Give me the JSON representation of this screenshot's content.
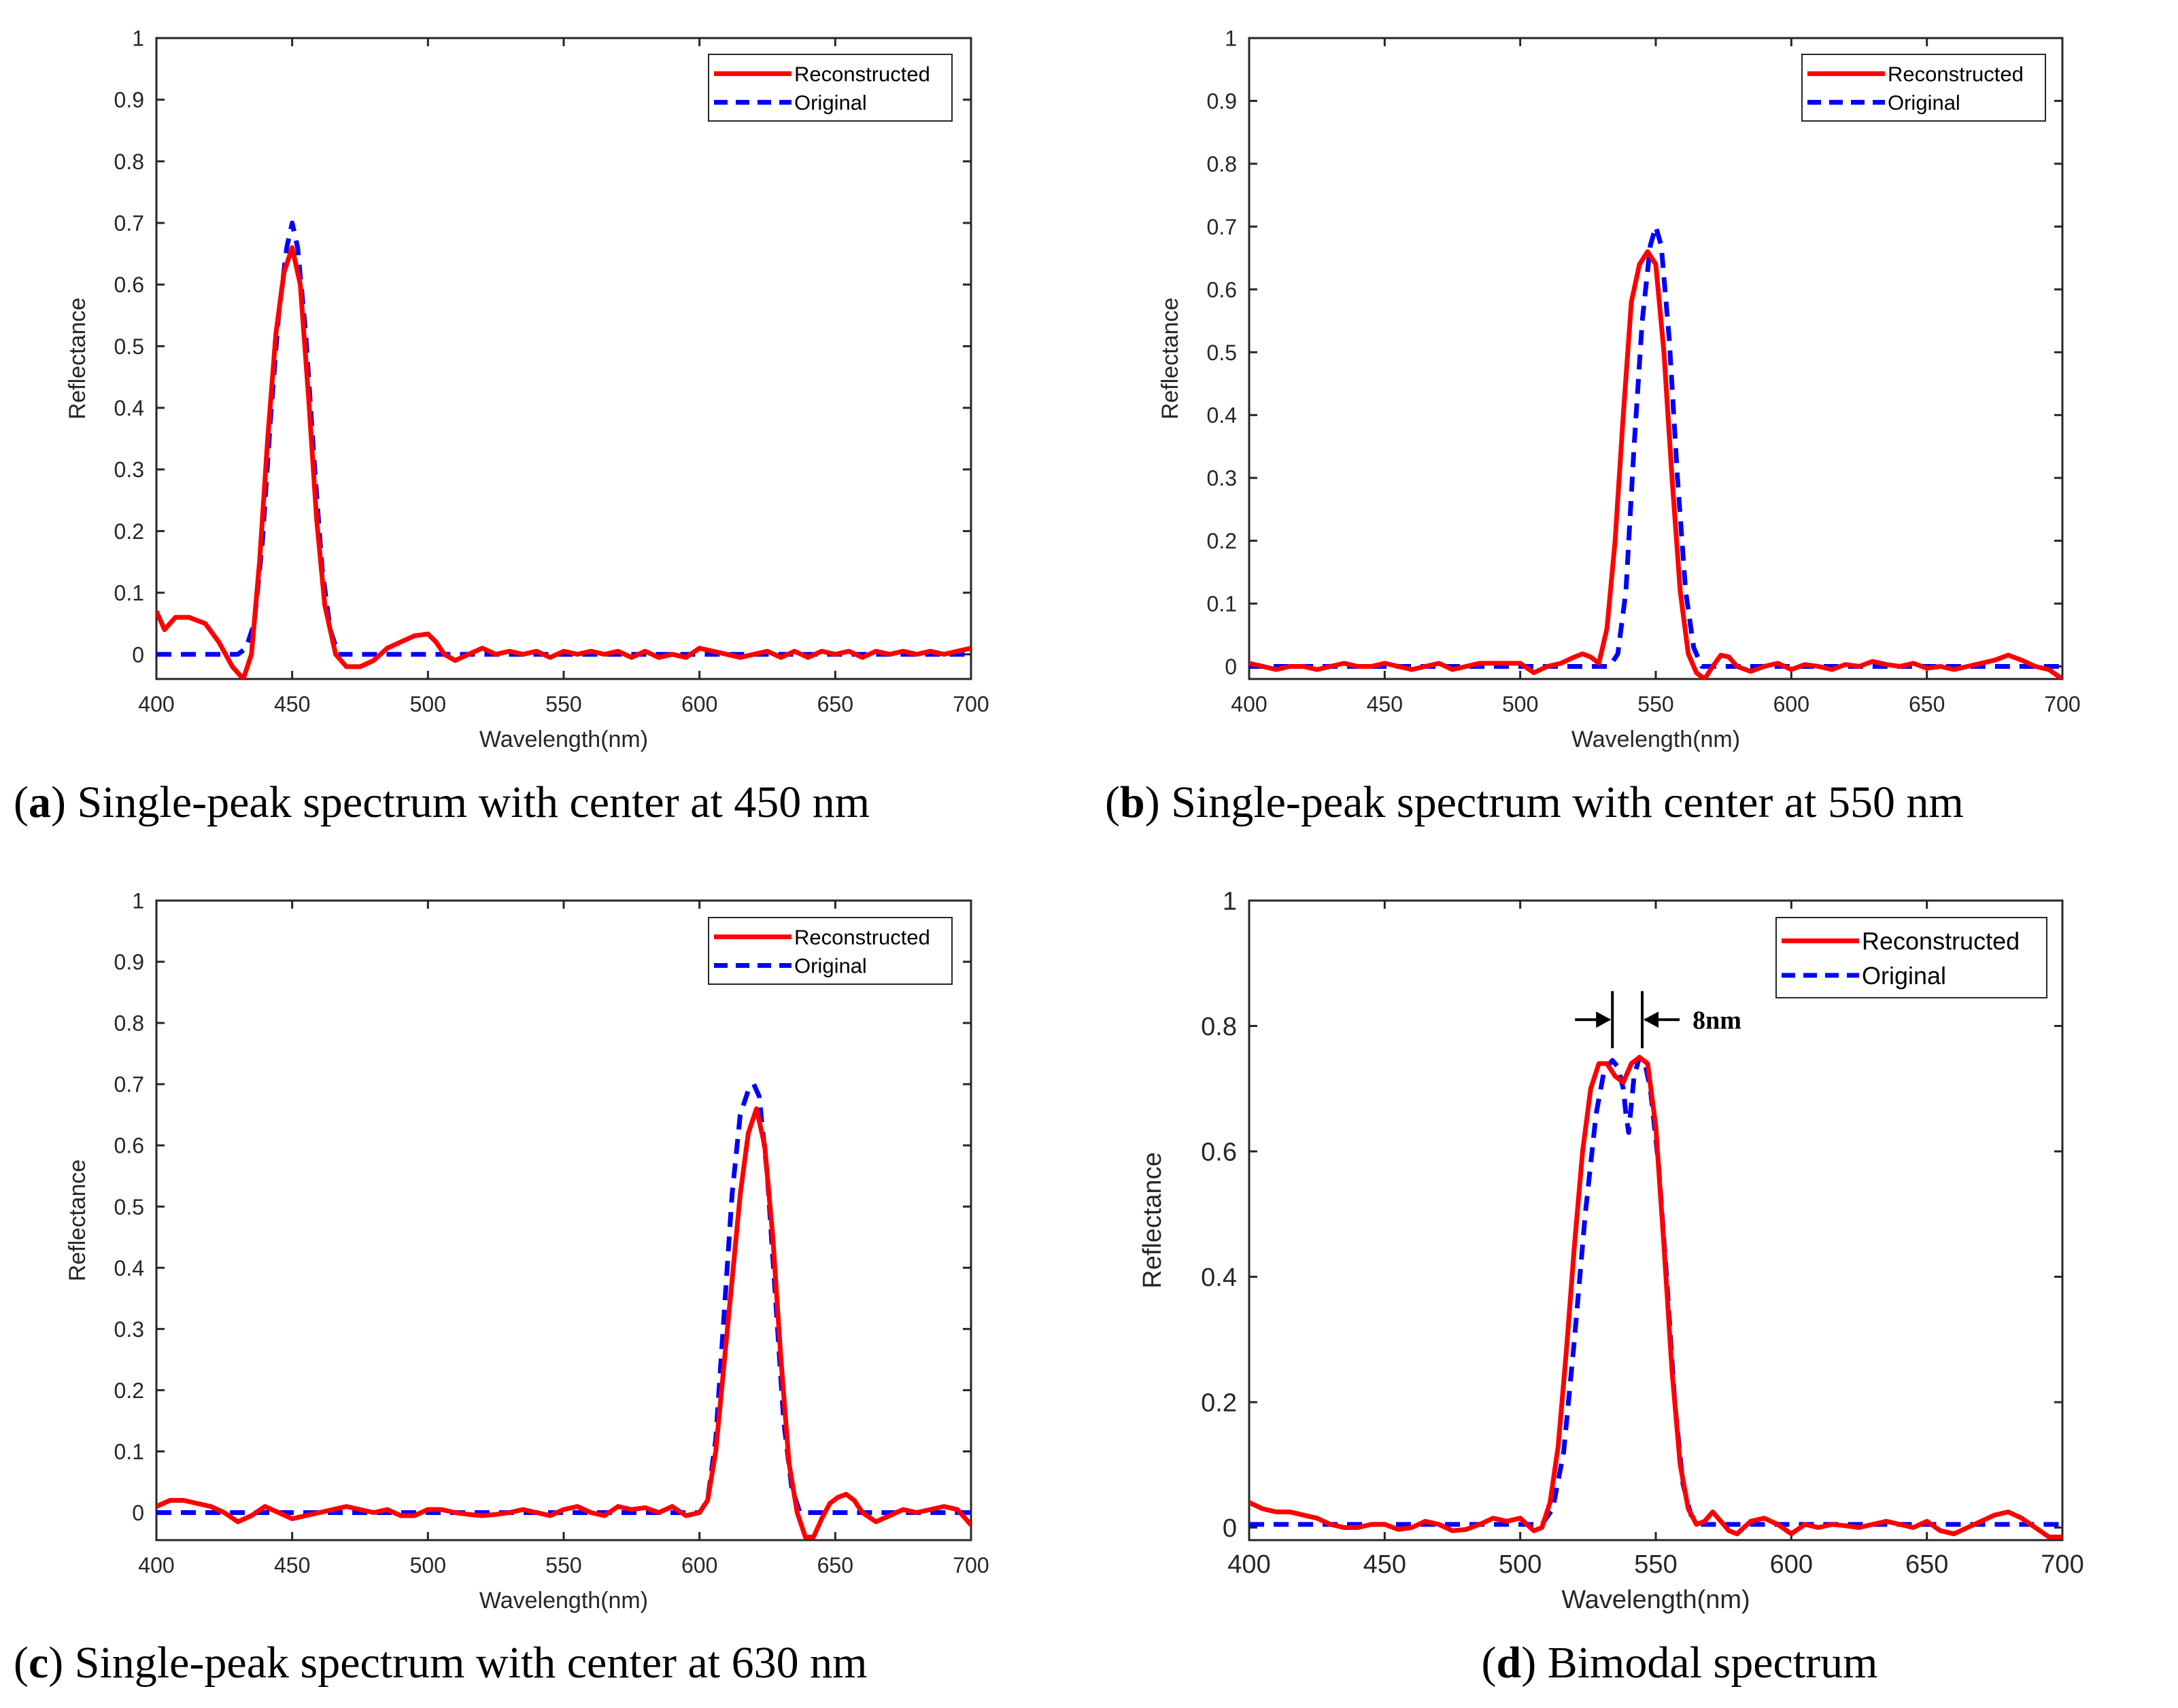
{
  "chart_data": [
    {
      "type": "line",
      "panel": "a",
      "caption_label": "a",
      "caption_text": "Single-peak spectrum with center at 450 nm",
      "xlabel": "Wavelength(nm)",
      "ylabel": "Reflectance",
      "xlim": [
        400,
        700
      ],
      "ylim": [
        -0.04,
        1
      ],
      "xticks": [
        "400",
        "450",
        "500",
        "550",
        "600",
        "650",
        "700"
      ],
      "yticks": [
        "0",
        "0.1",
        "0.2",
        "0.3",
        "0.4",
        "0.5",
        "0.6",
        "0.7",
        "0.8",
        "0.9",
        "1"
      ],
      "legend": "top-right",
      "grid": false,
      "series": [
        {
          "name": "Reconstructed",
          "color": "#ff0000",
          "style": "solid",
          "x": [
            400,
            403,
            407,
            412,
            418,
            423,
            428,
            432,
            435,
            438,
            441,
            444,
            447,
            450,
            453,
            456,
            459,
            462,
            466,
            470,
            475,
            480,
            485,
            490,
            495,
            500,
            503,
            506,
            510,
            515,
            520,
            525,
            530,
            535,
            540,
            545,
            550,
            555,
            560,
            565,
            570,
            575,
            580,
            585,
            590,
            595,
            600,
            605,
            610,
            615,
            620,
            625,
            630,
            635,
            640,
            645,
            650,
            655,
            660,
            665,
            670,
            675,
            680,
            685,
            690,
            695,
            700
          ],
          "y": [
            0.07,
            0.04,
            0.06,
            0.06,
            0.05,
            0.02,
            -0.02,
            -0.04,
            0.0,
            0.15,
            0.35,
            0.52,
            0.62,
            0.66,
            0.6,
            0.42,
            0.22,
            0.08,
            0.0,
            -0.02,
            -0.02,
            -0.01,
            0.01,
            0.02,
            0.03,
            0.033,
            0.02,
            0.0,
            -0.01,
            0.0,
            0.01,
            0.0,
            0.005,
            0.0,
            0.005,
            -0.005,
            0.005,
            0.0,
            0.005,
            0.0,
            0.005,
            -0.005,
            0.005,
            -0.005,
            0.0,
            -0.005,
            0.01,
            0.005,
            0.0,
            -0.005,
            0.0,
            0.005,
            -0.005,
            0.005,
            -0.005,
            0.005,
            0.0,
            0.005,
            -0.005,
            0.005,
            0.0,
            0.005,
            0.0,
            0.005,
            0.0,
            0.005,
            0.01
          ]
        },
        {
          "name": "Original",
          "color": "#0000ff",
          "style": "dashed",
          "x": [
            400,
            430,
            433,
            436,
            439,
            442,
            445,
            448,
            450,
            452,
            455,
            458,
            461,
            464,
            467,
            700
          ],
          "y": [
            0,
            0,
            0.01,
            0.05,
            0.18,
            0.38,
            0.55,
            0.66,
            0.7,
            0.66,
            0.52,
            0.32,
            0.14,
            0.04,
            0,
            0
          ]
        }
      ]
    },
    {
      "type": "line",
      "panel": "b",
      "caption_label": "b",
      "caption_text": "Single-peak spectrum with center at 550 nm",
      "xlabel": "Wavelength(nm)",
      "ylabel": "Reflectance",
      "xlim": [
        400,
        700
      ],
      "ylim": [
        -0.02,
        1
      ],
      "xticks": [
        "400",
        "450",
        "500",
        "550",
        "600",
        "650",
        "700"
      ],
      "yticks": [
        "0",
        "0.1",
        "0.2",
        "0.3",
        "0.4",
        "0.5",
        "0.6",
        "0.7",
        "0.8",
        "0.9",
        "1"
      ],
      "legend": "top-right",
      "grid": false,
      "series": [
        {
          "name": "Reconstructed",
          "color": "#ff0000",
          "style": "solid",
          "x": [
            400,
            405,
            410,
            415,
            420,
            425,
            430,
            435,
            440,
            445,
            450,
            455,
            460,
            465,
            470,
            475,
            480,
            485,
            490,
            495,
            500,
            505,
            510,
            515,
            520,
            523,
            526,
            529,
            532,
            535,
            538,
            541,
            544,
            547,
            550,
            553,
            556,
            559,
            562,
            565,
            568,
            571,
            574,
            577,
            580,
            585,
            590,
            595,
            600,
            605,
            610,
            615,
            620,
            625,
            630,
            635,
            640,
            645,
            650,
            655,
            660,
            665,
            670,
            675,
            680,
            685,
            690,
            695,
            700
          ],
          "y": [
            0.005,
            0.0,
            -0.005,
            0.0,
            0.0,
            -0.005,
            0.0,
            0.005,
            0.0,
            0.0,
            0.005,
            0.0,
            -0.005,
            0.0,
            0.005,
            -0.005,
            0.0,
            0.005,
            0.005,
            0.005,
            0.005,
            -0.01,
            0.0,
            0.005,
            0.015,
            0.02,
            0.015,
            0.005,
            0.06,
            0.2,
            0.4,
            0.58,
            0.64,
            0.66,
            0.64,
            0.5,
            0.3,
            0.12,
            0.02,
            -0.01,
            -0.02,
            0.0,
            0.018,
            0.015,
            0.0,
            -0.008,
            0.0,
            0.005,
            -0.005,
            0.003,
            0.0,
            -0.005,
            0.003,
            0.0,
            0.008,
            0.003,
            0.0,
            0.005,
            -0.003,
            0.0,
            -0.005,
            0.0,
            0.005,
            0.01,
            0.018,
            0.01,
            0.0,
            -0.005,
            -0.02
          ]
        },
        {
          "name": "Original",
          "color": "#0000ff",
          "style": "dashed",
          "x": [
            400,
            533,
            536,
            539,
            542,
            545,
            548,
            550,
            552,
            555,
            558,
            561,
            564,
            567,
            700
          ],
          "y": [
            0,
            0,
            0.02,
            0.12,
            0.35,
            0.55,
            0.67,
            0.7,
            0.67,
            0.52,
            0.3,
            0.12,
            0.03,
            0,
            0
          ]
        }
      ]
    },
    {
      "type": "line",
      "panel": "c",
      "caption_label": "c",
      "caption_text": "Single-peak spectrum with center at 630 nm",
      "xlabel": "Wavelength(nm)",
      "ylabel": "Reflectance",
      "xlim": [
        400,
        700
      ],
      "ylim": [
        -0.045,
        1
      ],
      "xticks": [
        "400",
        "450",
        "500",
        "550",
        "600",
        "650",
        "700"
      ],
      "yticks": [
        "0",
        "0.1",
        "0.2",
        "0.3",
        "0.4",
        "0.5",
        "0.6",
        "0.7",
        "0.8",
        "0.9",
        "1"
      ],
      "legend": "top-right",
      "grid": false,
      "series": [
        {
          "name": "Reconstructed",
          "color": "#ff0000",
          "style": "solid",
          "x": [
            400,
            405,
            410,
            415,
            420,
            425,
            430,
            435,
            440,
            445,
            450,
            455,
            460,
            465,
            470,
            475,
            480,
            485,
            490,
            495,
            500,
            505,
            510,
            515,
            520,
            525,
            530,
            535,
            540,
            545,
            550,
            555,
            560,
            565,
            570,
            575,
            580,
            585,
            590,
            595,
            600,
            603,
            606,
            609,
            612,
            615,
            618,
            621,
            624,
            627,
            630,
            633,
            636,
            639,
            642,
            645,
            648,
            651,
            654,
            657,
            660,
            665,
            670,
            675,
            680,
            685,
            690,
            695,
            700
          ],
          "y": [
            0.01,
            0.02,
            0.02,
            0.015,
            0.01,
            0.0,
            -0.015,
            -0.005,
            0.01,
            0.0,
            -0.01,
            -0.005,
            0.0,
            0.005,
            0.01,
            0.005,
            0.0,
            0.005,
            -0.005,
            -0.005,
            0.005,
            0.005,
            0.0,
            -0.003,
            -0.005,
            -0.003,
            0.0,
            0.005,
            0.0,
            -0.005,
            0.005,
            0.01,
            0.0,
            -0.005,
            0.01,
            0.005,
            0.008,
            0.0,
            0.01,
            -0.005,
            0.0,
            0.02,
            0.1,
            0.24,
            0.38,
            0.52,
            0.62,
            0.66,
            0.6,
            0.45,
            0.25,
            0.08,
            0.0,
            -0.04,
            -0.04,
            -0.01,
            0.015,
            0.025,
            0.03,
            0.02,
            0.0,
            -0.015,
            -0.005,
            0.005,
            0.0,
            0.005,
            0.01,
            0.005,
            -0.02
          ]
        },
        {
          "name": "Original",
          "color": "#0000ff",
          "style": "dashed",
          "x": [
            400,
            600,
            603,
            606,
            609,
            612,
            615,
            618,
            620,
            622,
            625,
            628,
            631,
            634,
            637,
            700
          ],
          "y": [
            0,
            0,
            0.02,
            0.12,
            0.32,
            0.52,
            0.65,
            0.69,
            0.7,
            0.68,
            0.55,
            0.35,
            0.15,
            0.04,
            0,
            0
          ]
        }
      ]
    },
    {
      "type": "line",
      "panel": "d",
      "caption_label": "d",
      "caption_text": "Bimodal spectrum",
      "xlabel": "Wavelength(nm)",
      "ylabel": "Reflectance",
      "xlim": [
        400,
        700
      ],
      "ylim": [
        -0.02,
        1
      ],
      "xticks": [
        "400",
        "450",
        "500",
        "550",
        "600",
        "650",
        "700"
      ],
      "yticks": [
        "0",
        "0.2",
        "0.4",
        "0.6",
        "0.8",
        "1"
      ],
      "legend": "top-right",
      "grid": false,
      "annotation": {
        "text": "8nm",
        "x1": 534,
        "x2": 545,
        "y": 0.81
      },
      "series": [
        {
          "name": "Reconstructed",
          "color": "#ff0000",
          "style": "solid",
          "x": [
            400,
            405,
            410,
            415,
            420,
            425,
            430,
            435,
            440,
            445,
            450,
            455,
            460,
            465,
            470,
            475,
            480,
            485,
            490,
            495,
            500,
            505,
            508,
            511,
            514,
            517,
            520,
            523,
            526,
            529,
            532,
            535,
            538,
            541,
            544,
            547,
            550,
            553,
            556,
            559,
            562,
            565,
            568,
            571,
            574,
            577,
            580,
            585,
            590,
            595,
            600,
            605,
            610,
            615,
            620,
            625,
            630,
            635,
            640,
            645,
            650,
            655,
            660,
            665,
            670,
            675,
            680,
            685,
            690,
            695,
            700
          ],
          "y": [
            0.04,
            0.03,
            0.025,
            0.025,
            0.02,
            0.015,
            0.005,
            0.0,
            0.0,
            0.005,
            0.005,
            -0.003,
            0.0,
            0.01,
            0.005,
            -0.005,
            -0.003,
            0.005,
            0.015,
            0.01,
            0.015,
            -0.005,
            0.0,
            0.04,
            0.13,
            0.28,
            0.45,
            0.6,
            0.7,
            0.74,
            0.74,
            0.72,
            0.71,
            0.74,
            0.75,
            0.74,
            0.64,
            0.45,
            0.25,
            0.1,
            0.03,
            0.005,
            0.01,
            0.025,
            0.01,
            -0.005,
            -0.01,
            0.01,
            0.015,
            0.005,
            -0.01,
            0.005,
            0.0,
            0.005,
            0.003,
            0.0,
            0.005,
            0.01,
            0.005,
            0.0,
            0.01,
            -0.005,
            -0.01,
            0.0,
            0.01,
            0.02,
            0.025,
            0.015,
            0.0,
            -0.015,
            -0.015
          ]
        },
        {
          "name": "Original",
          "color": "#0000ff",
          "style": "dashed",
          "x": [
            400,
            508,
            512,
            516,
            520,
            524,
            528,
            531,
            534,
            536,
            538,
            539,
            540,
            542,
            544,
            546,
            548,
            551,
            554,
            557,
            560,
            563,
            566,
            700
          ],
          "y": [
            0.005,
            0.005,
            0.03,
            0.12,
            0.3,
            0.5,
            0.66,
            0.73,
            0.745,
            0.735,
            0.7,
            0.66,
            0.63,
            0.72,
            0.75,
            0.74,
            0.7,
            0.58,
            0.4,
            0.2,
            0.07,
            0.02,
            0.005,
            0.005
          ]
        }
      ]
    }
  ]
}
